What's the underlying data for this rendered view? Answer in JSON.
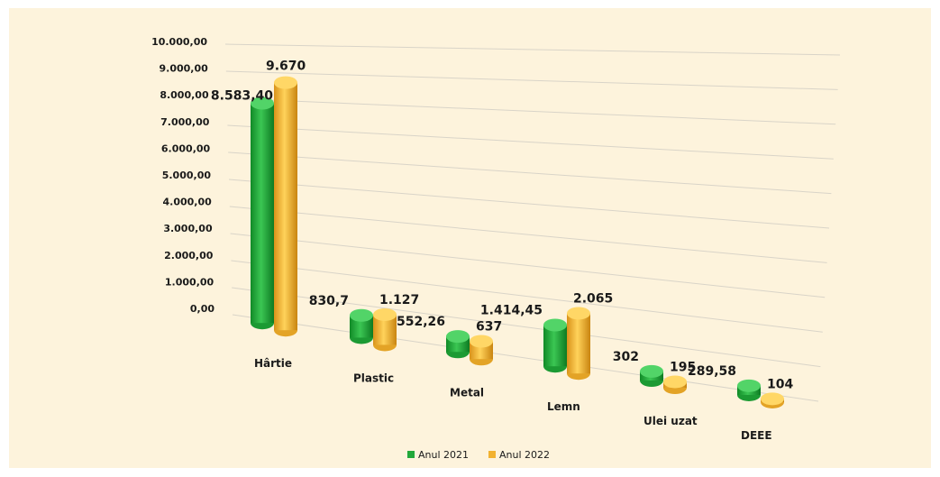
{
  "chart_data": {
    "type": "bar",
    "style": "3d-cylinder",
    "categories": [
      "Hârtie",
      "Plastic",
      "Metal",
      "Lemn",
      "Ulei uzat",
      "DEEE"
    ],
    "series": [
      {
        "name": "Anul 2021",
        "color": "#22a83a",
        "values": [
          8583.4,
          830.7,
          552.26,
          1414.45,
          302,
          289.58
        ],
        "labels": [
          "8.583,40",
          "830,7",
          "552,26",
          "1.414,45",
          "302",
          "289,58"
        ]
      },
      {
        "name": "Anul 2022",
        "color": "#f2b230",
        "values": [
          9670,
          1127,
          637,
          2065,
          195,
          104
        ],
        "labels": [
          "9.670",
          "1.127",
          "637",
          "2.065",
          "195",
          "104"
        ]
      }
    ],
    "y_ticks": [
      "0,00",
      "1.000,00",
      "2.000,00",
      "3.000,00",
      "4.000,00",
      "5.000,00",
      "6.000,00",
      "7.000,00",
      "8.000,00",
      "9.000,00",
      "10.000,00"
    ],
    "ylim": [
      0,
      10000
    ],
    "grid": true,
    "legend_position": "bottom",
    "background": "#fdf3dc"
  }
}
